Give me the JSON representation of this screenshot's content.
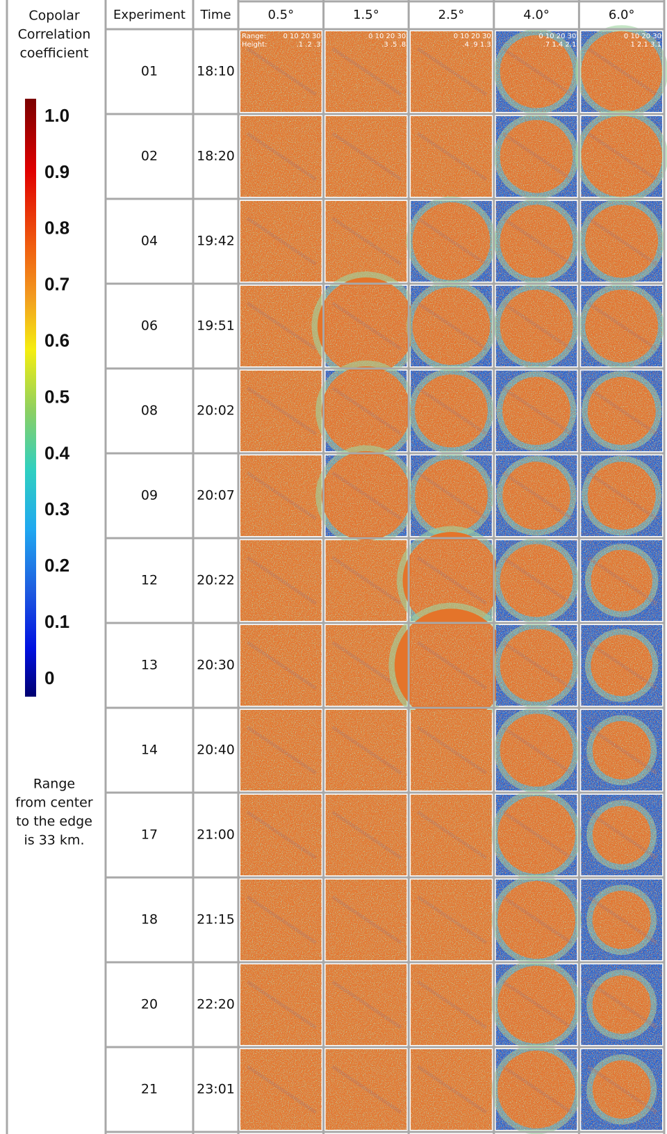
{
  "legend": {
    "title_lines": [
      "Copolar",
      "Correlation",
      "coefficient"
    ],
    "scale_labels": [
      "1.0",
      "0.9",
      "0.8",
      "0.7",
      "0.6",
      "0.5",
      "0.4",
      "0.3",
      "0.2",
      "0.1",
      "0"
    ],
    "note_lines": [
      "Range",
      "from center",
      "to the edge",
      "is 33 km."
    ]
  },
  "table": {
    "headers": [
      "Experiment",
      "Time",
      "0.5°",
      "1.5°",
      "2.5°",
      "4.0°",
      "6.0°"
    ],
    "rows": [
      [
        "01",
        "18:10"
      ],
      [
        "02",
        "18:20"
      ],
      [
        "04",
        "19:42"
      ],
      [
        "06",
        "19:51"
      ],
      [
        "08",
        "20:02"
      ],
      [
        "09",
        "20:07"
      ],
      [
        "12",
        "20:22"
      ],
      [
        "13",
        "20:30"
      ],
      [
        "14",
        "20:40"
      ],
      [
        "17",
        "21:00"
      ],
      [
        "18",
        "21:15"
      ],
      [
        "20",
        "22:20"
      ],
      [
        "21",
        "23:01"
      ]
    ],
    "image_labels": {
      "range_label": "Range:",
      "height_label": "Height:",
      "ranges": [
        "0 10 20 30",
        "0 10 20 30",
        "0 10 20 30",
        "0 10 20 30",
        "0 10 20 30"
      ],
      "heights": [
        ".1 .2 .3",
        ".3 .5 .8",
        ".4 .9 1.3",
        ".7 1.4 2.1",
        "1 2.1 3.1"
      ]
    }
  }
}
